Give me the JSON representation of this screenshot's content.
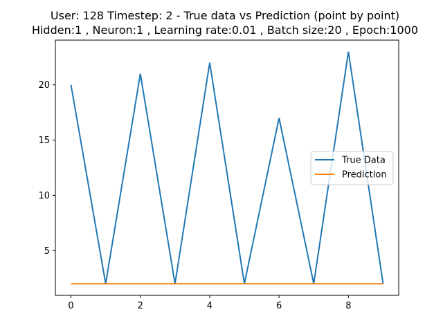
{
  "chart_data": {
    "type": "line",
    "title_lines": [
      "User: 128 Timestep: 2 - True data vs Prediction (point by point)",
      "Hidden:1 , Neuron:1 , Learning rate:0.01 , Batch size:20 , Epoch:1000"
    ],
    "xlabel": "",
    "ylabel": "",
    "x": [
      0,
      1,
      2,
      3,
      4,
      5,
      6,
      7,
      8,
      9
    ],
    "xlim": [
      -0.45,
      9.45
    ],
    "ylim": [
      0.95,
      24.05
    ],
    "xticks": [
      0,
      2,
      4,
      6,
      8
    ],
    "yticks": [
      5,
      10,
      15,
      20
    ],
    "grid": false,
    "legend_position": "center-right",
    "series": [
      {
        "name": "True Data",
        "color": "#1f77b4",
        "values": [
          20,
          2,
          21,
          2,
          22,
          2,
          17,
          2,
          23,
          2
        ]
      },
      {
        "name": "Prediction",
        "color": "#ff7f0e",
        "values": [
          2,
          2,
          2,
          2,
          2,
          2,
          2,
          2,
          2,
          2
        ]
      }
    ]
  }
}
